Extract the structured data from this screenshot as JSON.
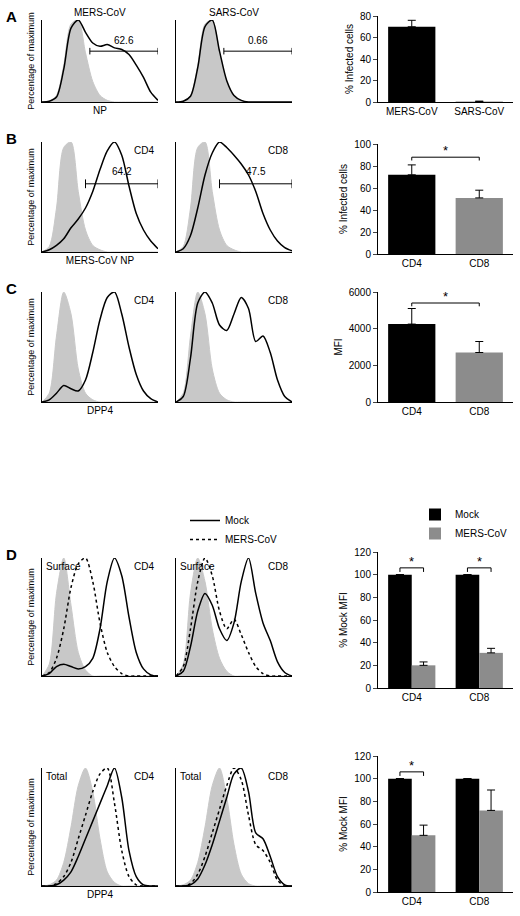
{
  "chart_data": [
    {
      "type": "line",
      "panel": "A",
      "title": "MERS-CoV",
      "xlabel": "NP",
      "ylabel": "Percentage of maximum",
      "x": [
        0,
        5,
        10,
        15,
        20,
        25,
        30,
        35,
        40,
        45,
        50,
        55,
        60,
        65,
        70,
        75,
        80
      ],
      "xlim": [
        0,
        80
      ],
      "ylim": [
        0,
        100
      ],
      "tick_labels": false,
      "grid": false,
      "gate": {
        "range": [
          33,
          80
        ],
        "y": 62,
        "label": "62.6"
      },
      "series": [
        {
          "type": "area",
          "color": "#c8c8c8",
          "values": [
            0,
            1,
            8,
            45,
            95,
            100,
            60,
            25,
            8,
            2,
            0,
            0,
            0,
            0,
            0,
            0,
            0
          ]
        },
        {
          "type": "line",
          "color": "#000000",
          "line_style": "solid",
          "values": [
            0,
            1,
            6,
            40,
            90,
            100,
            85,
            72,
            68,
            70,
            66,
            64,
            58,
            45,
            30,
            12,
            2
          ]
        }
      ]
    },
    {
      "type": "line",
      "title": "SARS-CoV",
      "x": [
        0,
        5,
        10,
        15,
        20,
        25,
        30,
        35,
        40,
        45,
        50,
        55,
        60,
        65,
        70,
        75,
        80
      ],
      "xlim": [
        0,
        80
      ],
      "ylim": [
        0,
        100
      ],
      "tick_labels": false,
      "grid": false,
      "gate": {
        "range": [
          33,
          80
        ],
        "y": 62,
        "label": "0.66"
      },
      "series": [
        {
          "type": "area",
          "color": "#c8c8c8",
          "values": [
            0,
            1,
            8,
            45,
            95,
            100,
            60,
            25,
            8,
            2,
            0,
            0,
            0,
            0,
            0,
            0,
            0
          ]
        },
        {
          "type": "line",
          "color": "#000000",
          "line_style": "solid",
          "values": [
            0,
            1,
            7,
            42,
            92,
            100,
            62,
            26,
            8,
            2,
            0,
            0,
            0,
            0,
            0,
            0,
            0
          ]
        }
      ]
    },
    {
      "type": "bar",
      "categories": [
        "MERS-CoV",
        "SARS-CoV"
      ],
      "values": [
        70,
        0.5
      ],
      "errors": [
        6,
        0.3
      ],
      "colors": [
        "#000000",
        "#8c8c8c"
      ],
      "ylabel": "% Infected cells",
      "ylim": [
        0,
        80
      ],
      "yticks": [
        0,
        20,
        40,
        60,
        80
      ],
      "grid": false
    },
    {
      "type": "line",
      "panel": "B",
      "insets": [
        "CD4"
      ],
      "xlabel": "MERS-CoV NP",
      "ylabel": "Percentage of maximum",
      "x": [
        0,
        5,
        10,
        15,
        20,
        25,
        30,
        35,
        40,
        45,
        50,
        55,
        60,
        65,
        70,
        75,
        80
      ],
      "xlim": [
        0,
        80
      ],
      "ylim": [
        0,
        100
      ],
      "tick_labels": false,
      "grid": false,
      "gate": {
        "range": [
          30,
          80
        ],
        "y": 62,
        "label": "64.2"
      },
      "series": [
        {
          "type": "area",
          "color": "#c8c8c8",
          "values": [
            0,
            5,
            40,
            95,
            100,
            55,
            20,
            6,
            2,
            0,
            0,
            0,
            0,
            0,
            0,
            0,
            0
          ]
        },
        {
          "type": "line",
          "color": "#000000",
          "line_style": "solid",
          "values": [
            0,
            2,
            6,
            12,
            22,
            30,
            40,
            55,
            75,
            92,
            100,
            88,
            60,
            35,
            20,
            10,
            3
          ]
        }
      ]
    },
    {
      "type": "line",
      "insets": [
        "CD8"
      ],
      "x": [
        0,
        5,
        10,
        15,
        20,
        25,
        30,
        35,
        40,
        45,
        50,
        55,
        60,
        65,
        70,
        75,
        80
      ],
      "xlim": [
        0,
        80
      ],
      "ylim": [
        0,
        100
      ],
      "tick_labels": false,
      "grid": false,
      "gate": {
        "range": [
          30,
          80
        ],
        "y": 62,
        "label": "47.5"
      },
      "series": [
        {
          "type": "area",
          "color": "#c8c8c8",
          "values": [
            0,
            5,
            40,
            95,
            100,
            55,
            20,
            6,
            2,
            0,
            0,
            0,
            0,
            0,
            0,
            0,
            0
          ]
        },
        {
          "type": "line",
          "color": "#000000",
          "line_style": "solid",
          "values": [
            0,
            3,
            15,
            40,
            70,
            90,
            100,
            95,
            88,
            80,
            70,
            55,
            35,
            20,
            10,
            4,
            1
          ]
        }
      ]
    },
    {
      "type": "bar",
      "categories": [
        "CD4",
        "CD8"
      ],
      "values": [
        72,
        51
      ],
      "errors": [
        9,
        7
      ],
      "colors": [
        "#000000",
        "#8c8c8c"
      ],
      "ylabel": "% Infected cells",
      "ylim": [
        0,
        100
      ],
      "yticks": [
        0,
        20,
        40,
        60,
        80,
        100
      ],
      "grid": false,
      "significance": [
        {
          "from": "CD4",
          "to": "CD8",
          "y": 88,
          "label": "*"
        }
      ]
    },
    {
      "type": "line",
      "panel": "C",
      "insets": [
        "CD4"
      ],
      "xlabel": "DPP4",
      "ylabel": "Percentage of maximum",
      "x": [
        0,
        5,
        10,
        15,
        20,
        25,
        30,
        35,
        40,
        45,
        50,
        55,
        60,
        65,
        70,
        75,
        80
      ],
      "xlim": [
        0,
        80
      ],
      "ylim": [
        0,
        100
      ],
      "tick_labels": false,
      "grid": false,
      "series": [
        {
          "type": "area",
          "color": "#c8c8c8",
          "values": [
            0,
            8,
            60,
            100,
            80,
            30,
            8,
            2,
            0,
            0,
            0,
            0,
            0,
            0,
            0,
            0,
            0
          ]
        },
        {
          "type": "line",
          "color": "#000000",
          "line_style": "solid",
          "values": [
            0,
            2,
            8,
            15,
            12,
            10,
            20,
            45,
            75,
            95,
            100,
            80,
            50,
            25,
            10,
            3,
            0
          ]
        }
      ]
    },
    {
      "type": "line",
      "insets": [
        "CD8"
      ],
      "x": [
        0,
        5,
        10,
        15,
        20,
        25,
        30,
        35,
        40,
        45,
        50,
        55,
        60,
        65,
        70,
        75,
        80
      ],
      "xlim": [
        0,
        80
      ],
      "ylim": [
        0,
        100
      ],
      "tick_labels": false,
      "grid": false,
      "series": [
        {
          "type": "area",
          "color": "#c8c8c8",
          "values": [
            0,
            8,
            60,
            100,
            80,
            30,
            8,
            2,
            0,
            0,
            0,
            0,
            0,
            0,
            0,
            0,
            0
          ]
        },
        {
          "type": "line",
          "color": "#000000",
          "line_style": "solid",
          "values": [
            0,
            5,
            40,
            90,
            100,
            90,
            70,
            65,
            80,
            95,
            85,
            55,
            60,
            45,
            20,
            5,
            0
          ]
        }
      ]
    },
    {
      "type": "bar",
      "categories": [
        "CD4",
        "CD8"
      ],
      "values": [
        4250,
        2700
      ],
      "errors": [
        850,
        600
      ],
      "colors": [
        "#000000",
        "#8c8c8c"
      ],
      "ylabel": "MFI",
      "ylim": [
        0,
        6000
      ],
      "yticks": [
        0,
        2000,
        4000,
        6000
      ],
      "grid": false,
      "significance": [
        {
          "from": "CD4",
          "to": "CD8",
          "y": 5400,
          "label": "*"
        }
      ]
    },
    {
      "type": "line",
      "panel": "D",
      "insets": [
        "Surface",
        "CD4"
      ],
      "ylabel": "Percentage of maximum",
      "x": [
        0,
        5,
        10,
        15,
        20,
        25,
        30,
        35,
        40,
        45,
        50,
        55,
        60,
        65,
        70,
        75,
        80
      ],
      "xlim": [
        0,
        80
      ],
      "ylim": [
        0,
        100
      ],
      "tick_labels": false,
      "grid": false,
      "series": [
        {
          "type": "area",
          "color": "#c8c8c8",
          "values": [
            0,
            10,
            70,
            100,
            60,
            20,
            5,
            0,
            0,
            0,
            0,
            0,
            0,
            0,
            0,
            0,
            0
          ]
        },
        {
          "type": "line",
          "name": "Mock",
          "color": "#000000",
          "line_style": "solid",
          "values": [
            0,
            2,
            8,
            10,
            8,
            6,
            8,
            15,
            40,
            80,
            100,
            85,
            50,
            20,
            6,
            1,
            0
          ]
        },
        {
          "type": "line",
          "name": "MERS-CoV",
          "color": "#000000",
          "line_style": "dotted",
          "values": [
            0,
            3,
            15,
            40,
            75,
            95,
            100,
            80,
            45,
            20,
            8,
            2,
            0,
            0,
            0,
            0,
            0
          ]
        }
      ]
    },
    {
      "type": "line",
      "insets": [
        "Surface",
        "CD8"
      ],
      "legend": "top",
      "x": [
        0,
        5,
        10,
        15,
        20,
        25,
        30,
        35,
        40,
        45,
        50,
        55,
        60,
        65,
        70,
        75,
        80
      ],
      "xlim": [
        0,
        80
      ],
      "ylim": [
        0,
        100
      ],
      "tick_labels": false,
      "grid": false,
      "series": [
        {
          "type": "area",
          "color": "#c8c8c8",
          "values": [
            0,
            10,
            70,
            100,
            80,
            40,
            15,
            4,
            0,
            0,
            0,
            0,
            0,
            0,
            0,
            0,
            0
          ]
        },
        {
          "type": "line",
          "name": "Mock",
          "color": "#000000",
          "line_style": "solid",
          "values": [
            0,
            4,
            25,
            55,
            70,
            60,
            40,
            30,
            45,
            80,
            100,
            70,
            45,
            30,
            12,
            3,
            0
          ]
        },
        {
          "type": "line",
          "name": "MERS-CoV",
          "color": "#000000",
          "line_style": "dotted",
          "values": [
            0,
            8,
            40,
            80,
            100,
            85,
            55,
            40,
            48,
            35,
            20,
            8,
            2,
            0,
            0,
            0,
            0
          ]
        }
      ]
    },
    {
      "type": "line",
      "insets": [
        "Total",
        "CD4"
      ],
      "xlabel": "DPP4",
      "ylabel": "Percentage of maximum",
      "x": [
        0,
        5,
        10,
        15,
        20,
        25,
        30,
        35,
        40,
        45,
        50,
        55,
        60,
        65,
        70,
        75,
        80
      ],
      "xlim": [
        0,
        80
      ],
      "ylim": [
        0,
        100
      ],
      "tick_labels": false,
      "grid": false,
      "series": [
        {
          "type": "area",
          "color": "#c8c8c8",
          "values": [
            0,
            1,
            5,
            20,
            50,
            85,
            100,
            80,
            40,
            12,
            3,
            0,
            0,
            0,
            0,
            0,
            0
          ]
        },
        {
          "type": "line",
          "name": "Mock",
          "color": "#000000",
          "line_style": "solid",
          "values": [
            0,
            0,
            1,
            5,
            12,
            25,
            40,
            55,
            70,
            85,
            100,
            75,
            30,
            8,
            1,
            0,
            0
          ]
        },
        {
          "type": "line",
          "name": "MERS-CoV",
          "color": "#000000",
          "line_style": "dotted",
          "values": [
            0,
            0,
            2,
            8,
            20,
            40,
            60,
            80,
            95,
            100,
            70,
            30,
            8,
            1,
            0,
            0,
            0
          ]
        }
      ]
    },
    {
      "type": "line",
      "insets": [
        "Total",
        "CD8"
      ],
      "x": [
        0,
        5,
        10,
        15,
        20,
        25,
        30,
        35,
        40,
        45,
        50,
        55,
        60,
        65,
        70,
        75,
        80
      ],
      "xlim": [
        0,
        80
      ],
      "ylim": [
        0,
        100
      ],
      "tick_labels": false,
      "grid": false,
      "series": [
        {
          "type": "area",
          "color": "#c8c8c8",
          "values": [
            0,
            1,
            5,
            20,
            50,
            85,
            100,
            75,
            35,
            10,
            2,
            0,
            0,
            0,
            0,
            0,
            0
          ]
        },
        {
          "type": "line",
          "name": "Mock",
          "color": "#000000",
          "line_style": "solid",
          "values": [
            0,
            0,
            1,
            6,
            18,
            35,
            55,
            75,
            95,
            100,
            80,
            45,
            40,
            25,
            8,
            1,
            0
          ]
        },
        {
          "type": "line",
          "name": "MERS-CoV",
          "color": "#000000",
          "line_style": "dotted",
          "values": [
            0,
            0,
            2,
            10,
            25,
            45,
            65,
            85,
            100,
            90,
            60,
            35,
            30,
            20,
            5,
            0,
            0
          ]
        }
      ]
    },
    {
      "type": "bar",
      "categories": [
        "CD4",
        "CD8"
      ],
      "legend": "top right",
      "ylabel": "% Mock MFI",
      "ylim": [
        0,
        120
      ],
      "yticks": [
        0,
        20,
        40,
        60,
        80,
        100,
        120
      ],
      "grid": false,
      "series": [
        {
          "name": "Mock",
          "color": "#000000",
          "values": [
            100,
            100
          ],
          "errors": [
            0,
            0
          ]
        },
        {
          "name": "MERS-CoV",
          "color": "#8c8c8c",
          "values": [
            20,
            31
          ],
          "errors": [
            3,
            4
          ]
        }
      ],
      "significance": [
        {
          "category": "CD4",
          "y": 106,
          "label": "*"
        },
        {
          "category": "CD8",
          "y": 106,
          "label": "*"
        }
      ]
    },
    {
      "type": "bar",
      "categories": [
        "CD4",
        "CD8"
      ],
      "ylabel": "% Mock MFI",
      "ylim": [
        0,
        120
      ],
      "yticks": [
        0,
        20,
        40,
        60,
        80,
        100,
        120
      ],
      "grid": false,
      "series": [
        {
          "name": "Mock",
          "color": "#000000",
          "values": [
            100,
            100
          ],
          "errors": [
            0,
            0
          ]
        },
        {
          "name": "MERS-CoV",
          "color": "#8c8c8c",
          "values": [
            50,
            72
          ],
          "errors": [
            9,
            18
          ]
        }
      ],
      "significance": [
        {
          "category": "CD4",
          "y": 106,
          "label": "*"
        }
      ]
    }
  ]
}
